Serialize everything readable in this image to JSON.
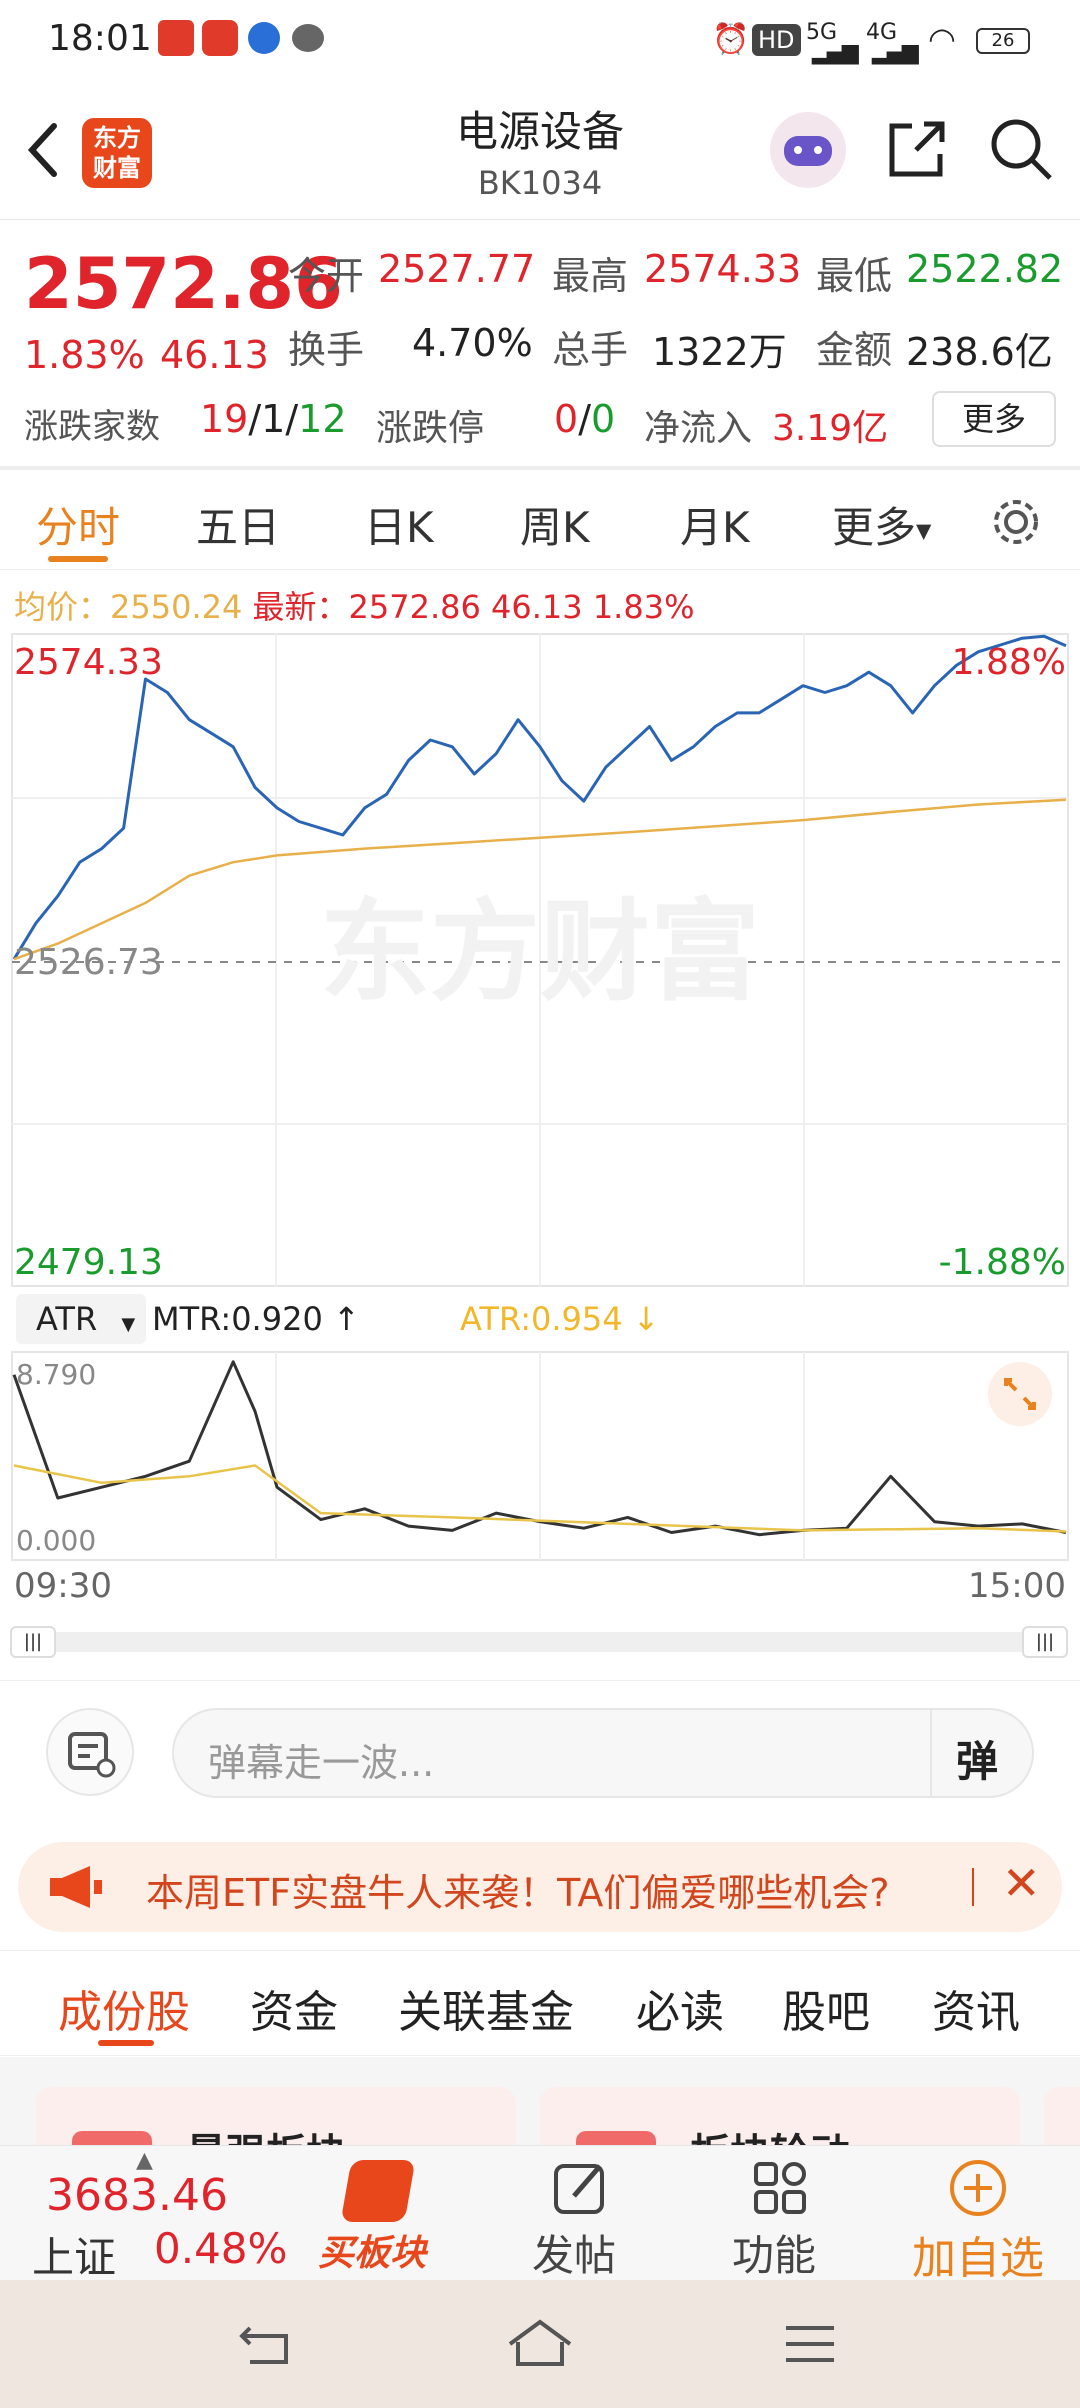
{
  "status": {
    "time": "18:01",
    "battery": "26",
    "net1": "5G",
    "net2": "4G",
    "hd": "HD"
  },
  "header": {
    "logo_line1": "东方",
    "logo_line2": "财富",
    "title": "电源设备",
    "code": "BK1034"
  },
  "quote": {
    "price": "2572.86",
    "pct": "1.83%",
    "chg": "46.13",
    "open_label": "今开",
    "open": "2527.77",
    "high_label": "最高",
    "high": "2574.33",
    "low_label": "最低",
    "low": "2522.82",
    "turnover_label": "换手",
    "turnover": "4.70%",
    "volume_label": "总手",
    "volume": "1322万",
    "amount_label": "金额",
    "amount": "238.6亿",
    "breadth_label": "涨跌家数",
    "up": "19",
    "flat": "1",
    "down": "12",
    "sep": "/",
    "limit_label": "涨跌停",
    "limit_up": "0",
    "limit_down": "0",
    "netflow_label": "净流入",
    "netflow": "3.19亿",
    "more_button": "更多"
  },
  "tabs": {
    "items": [
      "分时",
      "五日",
      "日K",
      "周K",
      "月K"
    ],
    "more": "更多"
  },
  "chart_info": {
    "avg_label": "均价：",
    "avg": "2550.24",
    "latest_label": "最新：",
    "latest": "2572.86",
    "chg": "46.13",
    "pct": "1.83%"
  },
  "chart_labels": {
    "top_price": "2574.33",
    "top_pct": "1.88%",
    "mid_price": "2526.73",
    "bottom_price": "2479.13",
    "bottom_pct": "-1.88%",
    "watermark": "东方财富",
    "time_start": "09:30",
    "time_end": "15:00"
  },
  "indicator": {
    "name": "ATR",
    "mtr": "MTR:0.920",
    "atr": "ATR:0.954",
    "max": "8.790",
    "min": "0.000"
  },
  "danmu": {
    "placeholder": "弹幕走一波...",
    "button": "弹"
  },
  "banner": {
    "text": "本周ETF实盘牛人来袭！TA们偏爱哪些机会?"
  },
  "section_tabs": [
    "成份股",
    "资金",
    "关联基金",
    "必读",
    "股吧",
    "资讯"
  ],
  "cards": [
    "最强板块",
    "板块轮动"
  ],
  "bottom_bar": {
    "index_value": "3683.46",
    "index_name": "上证",
    "index_pct": "0.48%",
    "buy_label": "买板块",
    "post_label": "发帖",
    "func_label": "功能",
    "add_label": "加自选"
  },
  "chart_data": [
    {
      "type": "line",
      "series": [
        {
          "x": [
            0,
            5,
            10,
            15,
            20,
            25,
            30,
            35,
            40,
            45,
            50,
            55,
            60,
            65,
            70,
            75,
            80,
            85,
            90,
            95,
            100,
            105,
            110,
            115,
            120,
            125,
            130,
            135,
            140,
            145,
            150,
            155,
            160,
            165,
            170,
            175,
            180,
            185,
            190,
            195,
            200,
            205,
            210,
            215,
            220,
            225,
            230,
            235,
            240
          ],
          "values": [
            2526.7,
            2532,
            2536,
            2541,
            2543,
            2546,
            2568,
            2566,
            2562,
            2560,
            2558,
            2552,
            2549,
            2547,
            2546,
            2545,
            2549,
            2551,
            2556,
            2559,
            2558,
            2554,
            2557,
            2562,
            2558,
            2553,
            2550,
            2555,
            2558,
            2561,
            2556,
            2558,
            2561,
            2563,
            2563,
            2565,
            2567,
            2566,
            2567,
            2569,
            2567,
            2563,
            2567,
            2570,
            2572,
            2573,
            2574,
            2574.3,
            2572.9
          ]
        },
        {
          "x": [
            0,
            10,
            20,
            30,
            40,
            50,
            60,
            80,
            100,
            120,
            140,
            160,
            180,
            200,
            220,
            240
          ],
          "values": [
            2526.7,
            2529,
            2532,
            2535,
            2539,
            2541,
            2542,
            2543,
            2543.8,
            2544.6,
            2545.4,
            2546.3,
            2547.2,
            2548.4,
            2549.5,
            2550.2
          ]
        }
      ],
      "xlabel": "",
      "ylabel": "",
      "ylim": [
        2479.13,
        2574.33
      ]
    },
    {
      "type": "line",
      "series": [
        {
          "x": [
            0,
            10,
            20,
            30,
            40,
            50,
            55,
            60,
            70,
            80,
            90,
            100,
            110,
            120,
            130,
            140,
            150,
            160,
            170,
            180,
            190,
            200,
            210,
            220,
            230,
            240
          ],
          "values": [
            8.2,
            2.5,
            3.0,
            3.5,
            4.2,
            8.8,
            6.5,
            3.0,
            1.5,
            2.0,
            1.2,
            1.0,
            1.8,
            1.4,
            1.1,
            1.6,
            0.9,
            1.2,
            0.8,
            1.0,
            1.1,
            3.5,
            1.4,
            1.2,
            1.3,
            0.9
          ]
        },
        {
          "x": [
            0,
            20,
            40,
            55,
            70,
            100,
            140,
            180,
            220,
            240
          ],
          "values": [
            4.0,
            3.2,
            3.5,
            4.0,
            1.8,
            1.6,
            1.3,
            1.0,
            1.1,
            0.95
          ]
        }
      ],
      "ylim": [
        0.0,
        8.79
      ]
    }
  ],
  "colors": {
    "red": "#e0242b",
    "green": "#1a9b2e",
    "orange": "#e8821f",
    "price_line": "#2a64b4",
    "avg_line": "#e8b04a"
  }
}
